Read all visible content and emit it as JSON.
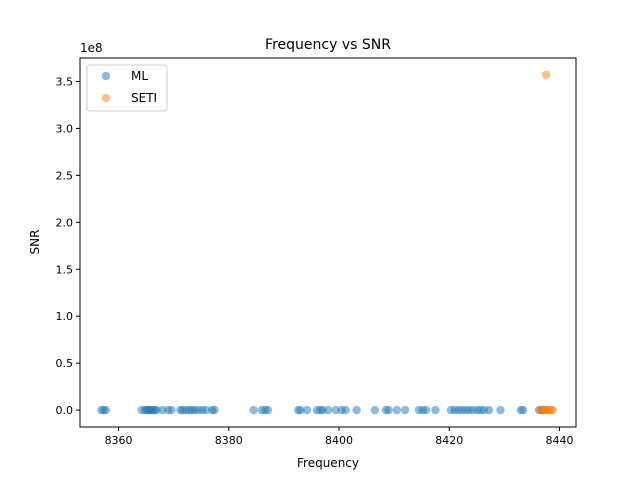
{
  "chart_data": {
    "type": "scatter",
    "title": "Frequency vs SNR",
    "xlabel": "Frequency",
    "ylabel": "SNR",
    "y_offset_label": "1e8",
    "xlim": [
      8353,
      8443
    ],
    "ylim": [
      -0.18,
      3.75
    ],
    "x_ticks": [
      8360,
      8380,
      8400,
      8420,
      8440
    ],
    "x_tick_labels": [
      "8360",
      "8380",
      "8400",
      "8420",
      "8440"
    ],
    "y_ticks": [
      0.0,
      0.5,
      1.0,
      1.5,
      2.0,
      2.5,
      3.0,
      3.5
    ],
    "y_tick_labels": [
      "0.0",
      "0.5",
      "1.0",
      "1.5",
      "2.0",
      "2.5",
      "3.0",
      "3.5"
    ],
    "grid": false,
    "legend_position": "top-left",
    "series": [
      {
        "name": "ML",
        "color": "#1f77b4",
        "points": [
          [
            8356.9,
            0
          ],
          [
            8357.3,
            0
          ],
          [
            8357.7,
            0
          ],
          [
            8364.2,
            0
          ],
          [
            8364.8,
            0
          ],
          [
            8365.1,
            0
          ],
          [
            8365.4,
            0
          ],
          [
            8365.7,
            0
          ],
          [
            8366.0,
            0
          ],
          [
            8366.3,
            0
          ],
          [
            8366.6,
            0
          ],
          [
            8366.9,
            0
          ],
          [
            8368.0,
            0
          ],
          [
            8369.0,
            0
          ],
          [
            8369.6,
            0
          ],
          [
            8371.2,
            0
          ],
          [
            8371.6,
            0
          ],
          [
            8372.2,
            0
          ],
          [
            8372.8,
            0
          ],
          [
            8373.3,
            0
          ],
          [
            8373.8,
            0
          ],
          [
            8374.5,
            0
          ],
          [
            8375.2,
            0
          ],
          [
            8375.9,
            0
          ],
          [
            8377.0,
            0
          ],
          [
            8377.4,
            0
          ],
          [
            8384.5,
            0
          ],
          [
            8386.0,
            0
          ],
          [
            8386.6,
            0
          ],
          [
            8387.1,
            0
          ],
          [
            8392.6,
            0
          ],
          [
            8393.0,
            0
          ],
          [
            8394.2,
            0
          ],
          [
            8396.0,
            0
          ],
          [
            8396.6,
            0
          ],
          [
            8397.0,
            0
          ],
          [
            8398.0,
            0
          ],
          [
            8399.4,
            0
          ],
          [
            8400.5,
            0
          ],
          [
            8401.2,
            0
          ],
          [
            8403.2,
            0
          ],
          [
            8406.5,
            0
          ],
          [
            8408.5,
            0
          ],
          [
            8409.0,
            0
          ],
          [
            8410.5,
            0
          ],
          [
            8412.0,
            0
          ],
          [
            8414.5,
            0
          ],
          [
            8415.2,
            0
          ],
          [
            8415.8,
            0
          ],
          [
            8417.5,
            0
          ],
          [
            8420.3,
            0
          ],
          [
            8421.0,
            0
          ],
          [
            8421.7,
            0
          ],
          [
            8422.3,
            0
          ],
          [
            8423.0,
            0
          ],
          [
            8423.6,
            0
          ],
          [
            8424.3,
            0
          ],
          [
            8425.1,
            0
          ],
          [
            8425.7,
            0
          ],
          [
            8426.3,
            0
          ],
          [
            8427.2,
            0
          ],
          [
            8429.3,
            0
          ],
          [
            8433.0,
            0
          ],
          [
            8433.4,
            0
          ],
          [
            8436.3,
            0
          ],
          [
            8436.8,
            0
          ],
          [
            8437.2,
            0
          ]
        ]
      },
      {
        "name": "SETI",
        "color": "#ff7f0e",
        "points": [
          [
            8437.6,
            3.57
          ],
          [
            8436.6,
            0
          ],
          [
            8437.0,
            0
          ],
          [
            8437.3,
            0
          ],
          [
            8437.6,
            0
          ],
          [
            8437.9,
            0
          ],
          [
            8438.2,
            0
          ],
          [
            8438.5,
            0
          ],
          [
            8438.8,
            0
          ]
        ]
      }
    ]
  }
}
